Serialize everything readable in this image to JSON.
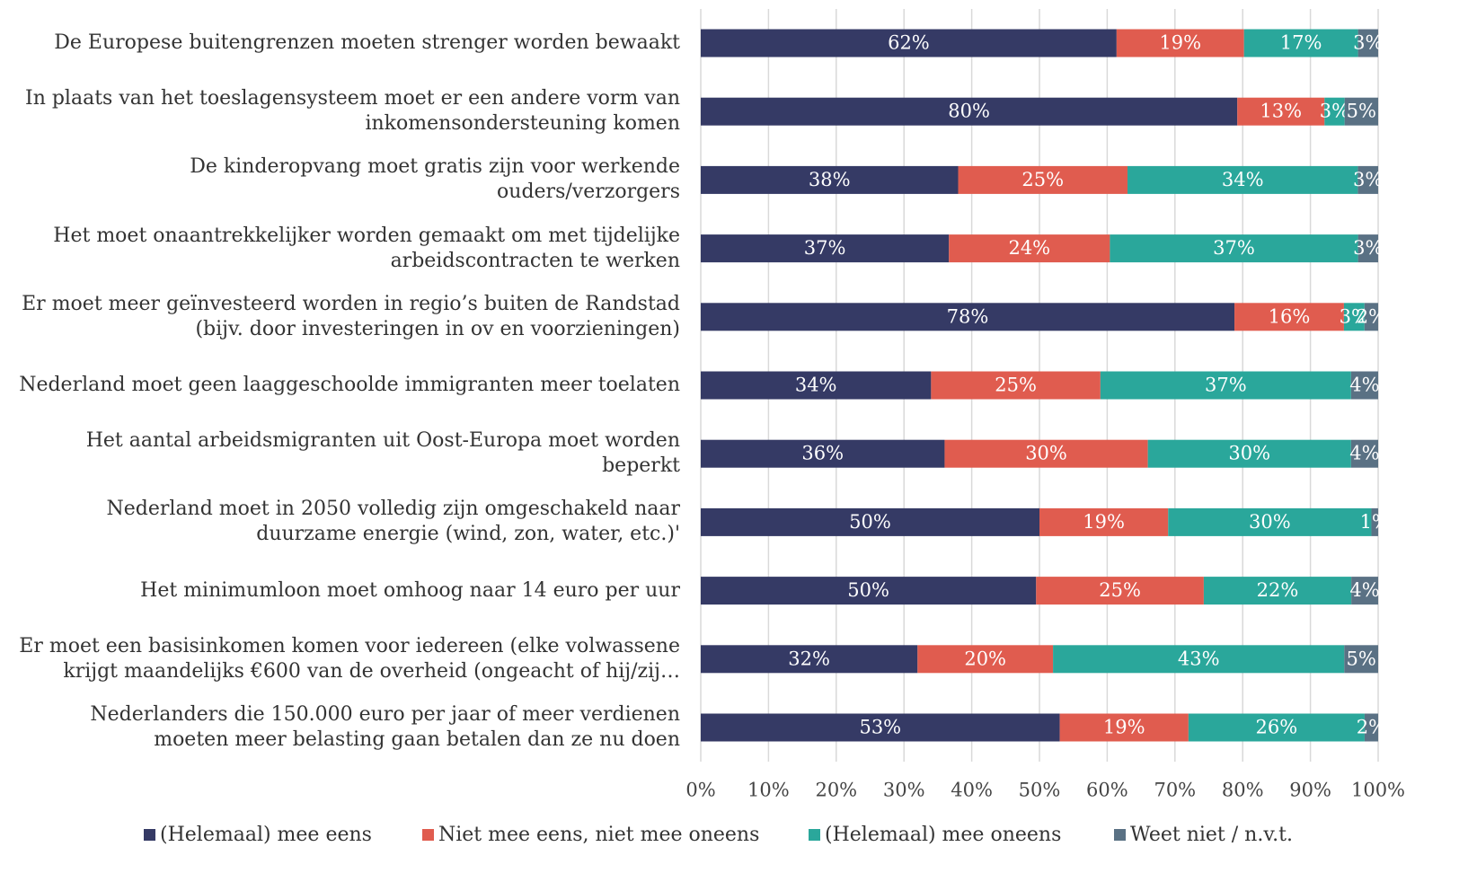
{
  "chart_data": {
    "type": "bar",
    "orientation": "horizontal",
    "stacked": "percent",
    "categories": [
      "De Europese buitengrenzen moeten strenger worden bewaakt",
      "In plaats van het toeslagensysteem moet er een andere vorm van inkomensondersteuning komen",
      "De kinderopvang moet gratis zijn voor werkende ouders/verzorgers",
      "Het moet onaantrekkelijker worden gemaakt om met tijdelijke arbeidscontracten te werken",
      "Er moet meer geïnvesteerd worden in regio’s buiten de Randstad (bijv. door investeringen in ov en voorzieningen)",
      "Nederland moet geen laaggeschoolde immigranten meer toelaten",
      "Het aantal arbeidsmigranten uit Oost-Europa moet worden beperkt",
      "Nederland moet in 2050 volledig zijn omgeschakeld naar duurzame energie (wind, zon, water, etc.)'",
      "Het minimumloon moet omhoog naar 14 euro per uur",
      "Er moet een basisinkomen komen voor iedereen (elke volwassene krijgt maandelijks €600 van de overheid (ongeacht of hij/zij…",
      "Nederlanders die 150.000 euro per jaar of meer verdienen moeten meer belasting gaan betalen dan ze nu doen"
    ],
    "series": [
      {
        "name": "(Helemaal) mee eens",
        "color": "#353a65",
        "values": [
          62,
          80,
          38,
          37,
          78,
          34,
          36,
          50,
          50,
          32,
          53
        ],
        "value_labels": [
          "62%",
          "80%",
          "38%",
          "37%",
          "78%",
          "34%",
          "36%",
          "50%",
          "50%",
          "32%",
          "53%"
        ]
      },
      {
        "name": "Niet mee eens, niet mee oneens",
        "color": "#e05c4f",
        "values": [
          19,
          13,
          25,
          24,
          16,
          25,
          30,
          19,
          25,
          20,
          19
        ],
        "value_labels": [
          "19%",
          "13%",
          "25%",
          "24%",
          "16%",
          "25%",
          "30%",
          "19%",
          "25%",
          "20%",
          "19%"
        ]
      },
      {
        "name": "(Helemaal) mee oneens",
        "color": "#2aa79b",
        "values": [
          17,
          3,
          34,
          37,
          3,
          37,
          30,
          30,
          22,
          43,
          26
        ],
        "value_labels": [
          "17%",
          "3%",
          "34%",
          "37%",
          "3%",
          "37%",
          "30%",
          "30%",
          "22%",
          "43%",
          "26%"
        ]
      },
      {
        "name": "Weet niet / n.v.t.",
        "color": "#5a7184",
        "values": [
          3,
          5,
          3,
          3,
          2,
          4,
          4,
          1,
          4,
          5,
          2
        ],
        "value_labels": [
          "3%",
          "5%",
          "3%",
          "3%",
          "2%",
          "4%",
          "4%",
          "1%",
          "4%",
          "5%",
          "2%"
        ]
      }
    ],
    "xlim": [
      0,
      100
    ],
    "xticks": [
      {
        "value": 0,
        "label": "0%"
      },
      {
        "value": 10,
        "label": "10%"
      },
      {
        "value": 20,
        "label": "20%"
      },
      {
        "value": 30,
        "label": "30%"
      },
      {
        "value": 40,
        "label": "40%"
      },
      {
        "value": 50,
        "label": "50%"
      },
      {
        "value": 60,
        "label": "60%"
      },
      {
        "value": 70,
        "label": "70%"
      },
      {
        "value": 80,
        "label": "80%"
      },
      {
        "value": 90,
        "label": "90%"
      },
      {
        "value": 100,
        "label": "100%"
      }
    ],
    "grid": true,
    "legend": "bottom"
  }
}
